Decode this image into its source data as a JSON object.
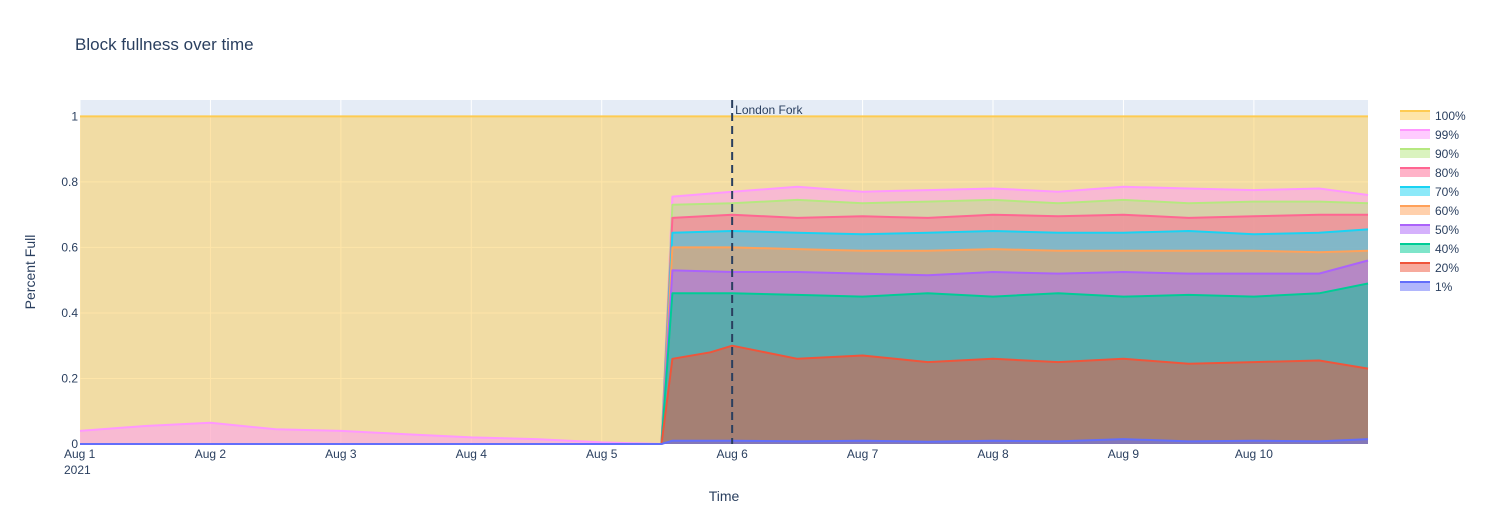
{
  "chart_data": {
    "type": "area",
    "title": "Block fullness over time",
    "xlabel": "Time",
    "ylabel": "Percent Full",
    "x_range": [
      "2021-08-01",
      "2021-08-10T21:00"
    ],
    "ylim": [
      0,
      1.05
    ],
    "x_ticks": [
      {
        "date": "2021-08-01",
        "label": "Aug 1",
        "sublabel": "2021"
      },
      {
        "date": "2021-08-02",
        "label": "Aug 2"
      },
      {
        "date": "2021-08-03",
        "label": "Aug 3"
      },
      {
        "date": "2021-08-04",
        "label": "Aug 4"
      },
      {
        "date": "2021-08-05",
        "label": "Aug 5"
      },
      {
        "date": "2021-08-06",
        "label": "Aug 6"
      },
      {
        "date": "2021-08-07",
        "label": "Aug 7"
      },
      {
        "date": "2021-08-08",
        "label": "Aug 8"
      },
      {
        "date": "2021-08-09",
        "label": "Aug 9"
      },
      {
        "date": "2021-08-10",
        "label": "Aug 10"
      }
    ],
    "y_ticks": [
      {
        "value": 0,
        "label": "0"
      },
      {
        "value": 0.2,
        "label": "0.2"
      },
      {
        "value": 0.4,
        "label": "0.4"
      },
      {
        "value": 0.6,
        "label": "0.6"
      },
      {
        "value": 0.8,
        "label": "0.8"
      },
      {
        "value": 1,
        "label": "1"
      }
    ],
    "grid": true,
    "legend_position": "right",
    "annotation": {
      "label": "London Fork",
      "date": "2021-08-06",
      "style": "dashed vertical line"
    },
    "series": [
      {
        "name": "100%",
        "color": "#FECB52",
        "points": [
          [
            "2021-08-01",
            1.0
          ],
          [
            "2021-08-10T21:00",
            1.0
          ]
        ]
      },
      {
        "name": "99%",
        "color": "#FF97FF",
        "points": [
          [
            "2021-08-01",
            0.04
          ],
          [
            "2021-08-01T12:00",
            0.055
          ],
          [
            "2021-08-02",
            0.065
          ],
          [
            "2021-08-02T12:00",
            0.045
          ],
          [
            "2021-08-03",
            0.04
          ],
          [
            "2021-08-03T12:00",
            0.03
          ],
          [
            "2021-08-04",
            0.02
          ],
          [
            "2021-08-04T12:00",
            0.015
          ],
          [
            "2021-08-05",
            0.005
          ],
          [
            "2021-08-05T11:00",
            0.0
          ],
          [
            "2021-08-05T13:00",
            0.755
          ],
          [
            "2021-08-06",
            0.77
          ],
          [
            "2021-08-06T12:00",
            0.785
          ],
          [
            "2021-08-07",
            0.77
          ],
          [
            "2021-08-07T12:00",
            0.775
          ],
          [
            "2021-08-08",
            0.78
          ],
          [
            "2021-08-08T12:00",
            0.77
          ],
          [
            "2021-08-09",
            0.785
          ],
          [
            "2021-08-09T12:00",
            0.78
          ],
          [
            "2021-08-10",
            0.775
          ],
          [
            "2021-08-10T12:00",
            0.78
          ],
          [
            "2021-08-10T21:00",
            0.76
          ]
        ]
      },
      {
        "name": "90%",
        "color": "#B6E880",
        "points": [
          [
            "2021-08-01",
            0.0
          ],
          [
            "2021-08-05T11:00",
            0.0
          ],
          [
            "2021-08-05T13:00",
            0.73
          ],
          [
            "2021-08-06",
            0.735
          ],
          [
            "2021-08-06T12:00",
            0.745
          ],
          [
            "2021-08-07",
            0.735
          ],
          [
            "2021-08-07T12:00",
            0.74
          ],
          [
            "2021-08-08",
            0.745
          ],
          [
            "2021-08-08T12:00",
            0.735
          ],
          [
            "2021-08-09",
            0.745
          ],
          [
            "2021-08-09T12:00",
            0.735
          ],
          [
            "2021-08-10",
            0.74
          ],
          [
            "2021-08-10T12:00",
            0.74
          ],
          [
            "2021-08-10T21:00",
            0.735
          ]
        ]
      },
      {
        "name": "80%",
        "color": "#FF6692",
        "points": [
          [
            "2021-08-01",
            0.0
          ],
          [
            "2021-08-05T11:00",
            0.0
          ],
          [
            "2021-08-05T13:00",
            0.69
          ],
          [
            "2021-08-06",
            0.7
          ],
          [
            "2021-08-06T12:00",
            0.69
          ],
          [
            "2021-08-07",
            0.695
          ],
          [
            "2021-08-07T12:00",
            0.69
          ],
          [
            "2021-08-08",
            0.7
          ],
          [
            "2021-08-08T12:00",
            0.695
          ],
          [
            "2021-08-09",
            0.7
          ],
          [
            "2021-08-09T12:00",
            0.69
          ],
          [
            "2021-08-10",
            0.695
          ],
          [
            "2021-08-10T12:00",
            0.7
          ],
          [
            "2021-08-10T21:00",
            0.7
          ]
        ]
      },
      {
        "name": "70%",
        "color": "#19D3F3",
        "points": [
          [
            "2021-08-01",
            0.0
          ],
          [
            "2021-08-05T11:00",
            0.0
          ],
          [
            "2021-08-05T13:00",
            0.645
          ],
          [
            "2021-08-06",
            0.65
          ],
          [
            "2021-08-06T12:00",
            0.645
          ],
          [
            "2021-08-07",
            0.64
          ],
          [
            "2021-08-07T12:00",
            0.645
          ],
          [
            "2021-08-08",
            0.65
          ],
          [
            "2021-08-08T12:00",
            0.645
          ],
          [
            "2021-08-09",
            0.645
          ],
          [
            "2021-08-09T12:00",
            0.65
          ],
          [
            "2021-08-10",
            0.64
          ],
          [
            "2021-08-10T12:00",
            0.645
          ],
          [
            "2021-08-10T21:00",
            0.655
          ]
        ]
      },
      {
        "name": "60%",
        "color": "#FFA15A",
        "points": [
          [
            "2021-08-01",
            0.0
          ],
          [
            "2021-08-05T11:00",
            0.0
          ],
          [
            "2021-08-05T13:00",
            0.6
          ],
          [
            "2021-08-06",
            0.6
          ],
          [
            "2021-08-06T12:00",
            0.595
          ],
          [
            "2021-08-07",
            0.59
          ],
          [
            "2021-08-07T12:00",
            0.59
          ],
          [
            "2021-08-08",
            0.595
          ],
          [
            "2021-08-08T12:00",
            0.59
          ],
          [
            "2021-08-09",
            0.59
          ],
          [
            "2021-08-09T12:00",
            0.59
          ],
          [
            "2021-08-10",
            0.59
          ],
          [
            "2021-08-10T12:00",
            0.585
          ],
          [
            "2021-08-10T21:00",
            0.59
          ]
        ]
      },
      {
        "name": "50%",
        "color": "#AB63FA",
        "points": [
          [
            "2021-08-01",
            0.0
          ],
          [
            "2021-08-05T11:00",
            0.0
          ],
          [
            "2021-08-05T13:00",
            0.53
          ],
          [
            "2021-08-06",
            0.525
          ],
          [
            "2021-08-06T12:00",
            0.525
          ],
          [
            "2021-08-07",
            0.52
          ],
          [
            "2021-08-07T12:00",
            0.515
          ],
          [
            "2021-08-08",
            0.525
          ],
          [
            "2021-08-08T12:00",
            0.52
          ],
          [
            "2021-08-09",
            0.525
          ],
          [
            "2021-08-09T12:00",
            0.52
          ],
          [
            "2021-08-10",
            0.52
          ],
          [
            "2021-08-10T12:00",
            0.52
          ],
          [
            "2021-08-10T21:00",
            0.56
          ]
        ]
      },
      {
        "name": "40%",
        "color": "#00CC96",
        "points": [
          [
            "2021-08-01",
            0.0
          ],
          [
            "2021-08-05T11:00",
            0.0
          ],
          [
            "2021-08-05T13:00",
            0.46
          ],
          [
            "2021-08-06",
            0.46
          ],
          [
            "2021-08-06T12:00",
            0.455
          ],
          [
            "2021-08-07",
            0.45
          ],
          [
            "2021-08-07T12:00",
            0.46
          ],
          [
            "2021-08-08",
            0.45
          ],
          [
            "2021-08-08T12:00",
            0.46
          ],
          [
            "2021-08-09",
            0.45
          ],
          [
            "2021-08-09T12:00",
            0.455
          ],
          [
            "2021-08-10",
            0.45
          ],
          [
            "2021-08-10T12:00",
            0.46
          ],
          [
            "2021-08-10T21:00",
            0.49
          ]
        ]
      },
      {
        "name": "20%",
        "color": "#EF553B",
        "points": [
          [
            "2021-08-01",
            0.0
          ],
          [
            "2021-08-05T11:00",
            0.0
          ],
          [
            "2021-08-05T13:00",
            0.26
          ],
          [
            "2021-08-05T20:00",
            0.28
          ],
          [
            "2021-08-06",
            0.3
          ],
          [
            "2021-08-06T12:00",
            0.26
          ],
          [
            "2021-08-07",
            0.27
          ],
          [
            "2021-08-07T12:00",
            0.25
          ],
          [
            "2021-08-08",
            0.26
          ],
          [
            "2021-08-08T12:00",
            0.25
          ],
          [
            "2021-08-09",
            0.26
          ],
          [
            "2021-08-09T12:00",
            0.245
          ],
          [
            "2021-08-10",
            0.25
          ],
          [
            "2021-08-10T12:00",
            0.255
          ],
          [
            "2021-08-10T21:00",
            0.23
          ]
        ]
      },
      {
        "name": "1%",
        "color": "#636EFA",
        "points": [
          [
            "2021-08-01",
            0.0
          ],
          [
            "2021-08-05T11:00",
            0.0
          ],
          [
            "2021-08-05T13:00",
            0.01
          ],
          [
            "2021-08-06",
            0.01
          ],
          [
            "2021-08-06T12:00",
            0.008
          ],
          [
            "2021-08-07",
            0.01
          ],
          [
            "2021-08-07T12:00",
            0.007
          ],
          [
            "2021-08-08",
            0.01
          ],
          [
            "2021-08-08T12:00",
            0.008
          ],
          [
            "2021-08-09",
            0.015
          ],
          [
            "2021-08-09T12:00",
            0.008
          ],
          [
            "2021-08-10",
            0.01
          ],
          [
            "2021-08-10T12:00",
            0.008
          ],
          [
            "2021-08-10T21:00",
            0.015
          ]
        ]
      }
    ]
  }
}
